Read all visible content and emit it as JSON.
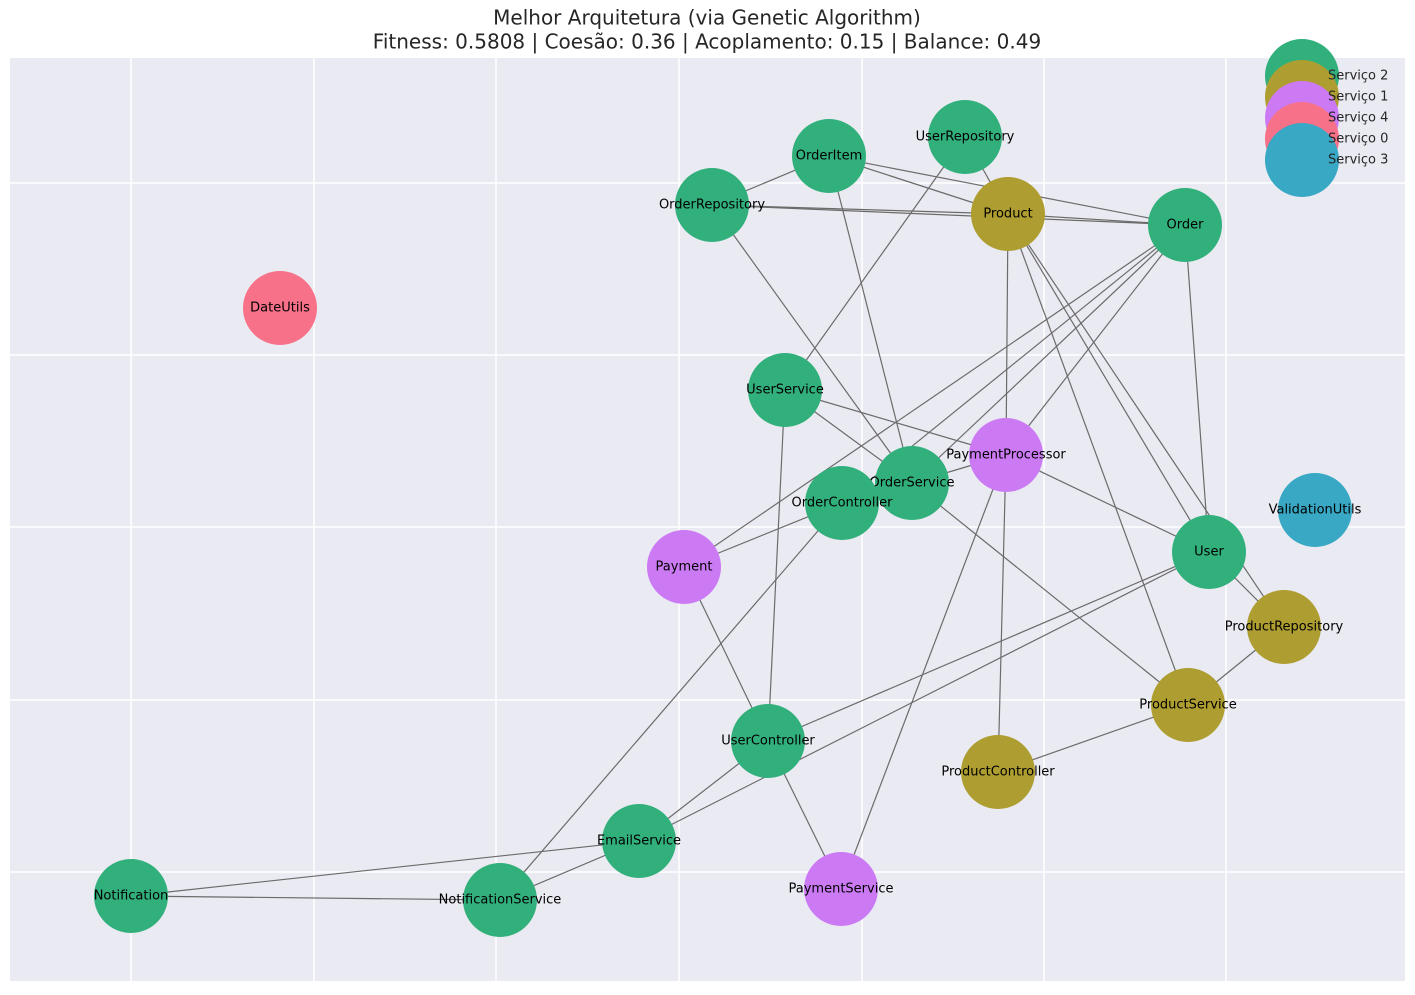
{
  "chart_data": {
    "type": "network",
    "title": "Melhor Arquitetura (via Genetic Algorithm)",
    "subtitle": "Fitness: 0.5808 | Coesão: 0.36 | Acoplamento: 0.15 | Balance: 0.49",
    "grid": true,
    "legend": "upper right",
    "series": [
      {
        "name": "Serviço 2",
        "color": "#32b07b"
      },
      {
        "name": "Serviço 1",
        "color": "#ae9d31"
      },
      {
        "name": "Serviço 4",
        "color": "#cc7af4"
      },
      {
        "name": "Serviço 0",
        "color": "#f77189"
      },
      {
        "name": "Serviço 3",
        "color": "#38a8c5"
      }
    ],
    "nodes": [
      {
        "label": "OrderItem",
        "group": 0
      },
      {
        "label": "UserRepository",
        "group": 0
      },
      {
        "label": "OrderRepository",
        "group": 0
      },
      {
        "label": "Product",
        "group": 1
      },
      {
        "label": "Order",
        "group": 0
      },
      {
        "label": "DateUtils",
        "group": 3
      },
      {
        "label": "UserService",
        "group": 0
      },
      {
        "label": "PaymentProcessor",
        "group": 2
      },
      {
        "label": "OrderService",
        "group": 0
      },
      {
        "label": "OrderController",
        "group": 0
      },
      {
        "label": "ValidationUtils",
        "group": 4
      },
      {
        "label": "User",
        "group": 0
      },
      {
        "label": "Payment",
        "group": 2
      },
      {
        "label": "ProductRepository",
        "group": 1
      },
      {
        "label": "ProductService",
        "group": 1
      },
      {
        "label": "UserController",
        "group": 0
      },
      {
        "label": "ProductController",
        "group": 1
      },
      {
        "label": "EmailService",
        "group": 0
      },
      {
        "label": "PaymentService",
        "group": 2
      },
      {
        "label": "Notification",
        "group": 0
      },
      {
        "label": "NotificationService",
        "group": 0
      }
    ],
    "edges": [
      [
        2,
        0
      ],
      [
        0,
        3
      ],
      [
        0,
        4
      ],
      [
        0,
        8
      ],
      [
        2,
        3
      ],
      [
        2,
        4
      ],
      [
        2,
        8
      ],
      [
        1,
        3
      ],
      [
        1,
        6
      ],
      [
        3,
        4
      ],
      [
        3,
        7
      ],
      [
        3,
        11
      ],
      [
        3,
        14
      ],
      [
        3,
        13
      ],
      [
        4,
        11
      ],
      [
        4,
        12
      ],
      [
        4,
        7
      ],
      [
        4,
        8
      ],
      [
        4,
        9
      ],
      [
        6,
        8
      ],
      [
        6,
        7
      ],
      [
        6,
        15
      ],
      [
        7,
        8
      ],
      [
        7,
        11
      ],
      [
        7,
        16
      ],
      [
        7,
        18
      ],
      [
        8,
        14
      ],
      [
        9,
        12
      ],
      [
        9,
        20
      ],
      [
        11,
        13
      ],
      [
        11,
        15
      ],
      [
        11,
        17
      ],
      [
        13,
        14
      ],
      [
        14,
        16
      ],
      [
        12,
        15
      ],
      [
        15,
        17
      ],
      [
        15,
        18
      ],
      [
        17,
        19
      ],
      [
        17,
        20
      ],
      [
        19,
        20
      ]
    ]
  }
}
